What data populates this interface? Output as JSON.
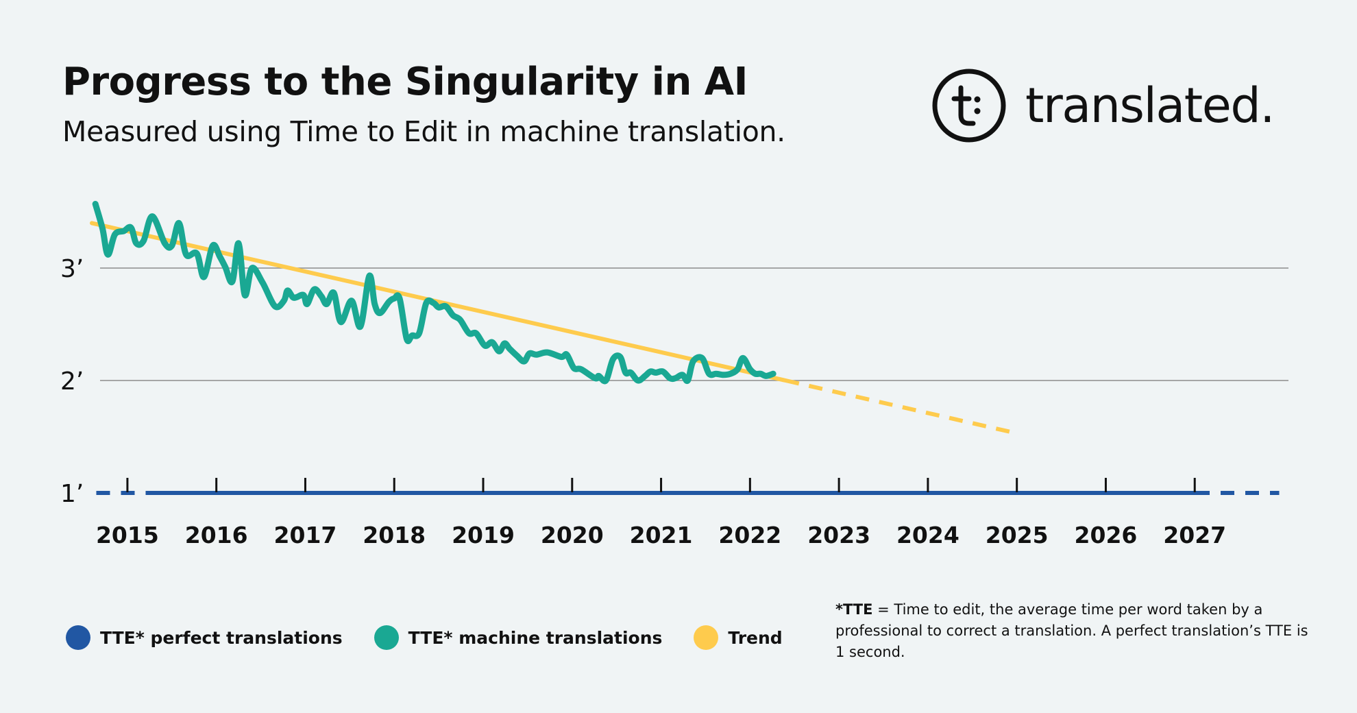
{
  "header": {
    "title": "Progress to the Singularity in AI",
    "subtitle": "Measured using Time to Edit in machine translation."
  },
  "logo": {
    "text": "translated.",
    "icon": "translated-logo-icon"
  },
  "colors": {
    "background": "#f0f4f5",
    "perfect": "#2157a3",
    "machine": "#1aa893",
    "trend": "#fecb4d",
    "gridline": "#8c8c8c",
    "text": "#111111"
  },
  "legend": {
    "perfect_label": "TTE* perfect translations",
    "machine_label": "TTE* machine translations",
    "trend_label": "Trend"
  },
  "footnote": {
    "term": "*TTE",
    "text": " = Time to edit, the average time per word taken by a professional to correct a translation. A perfect translation’s TTE is 1 second."
  },
  "chart_data": {
    "type": "line",
    "title": "Progress to the Singularity in AI",
    "subtitle": "Measured using Time to Edit in machine translation.",
    "xlabel": "",
    "ylabel": "",
    "x_ticks": [
      "2015",
      "2016",
      "2017",
      "2018",
      "2019",
      "2020",
      "2021",
      "2022",
      "2023",
      "2024",
      "2025",
      "2026",
      "2027"
    ],
    "y_ticks": [
      {
        "value": 1,
        "label": "1’"
      },
      {
        "value": 2,
        "label": "2’"
      },
      {
        "value": 3,
        "label": "3’"
      }
    ],
    "xlim": [
      2014.6,
      2028.0
    ],
    "ylim": [
      1,
      3.6
    ],
    "grid": "horizontal",
    "legend_position": "bottom-left",
    "series": [
      {
        "name": "TTE* perfect translations",
        "style": "solid, dashed at both ends",
        "x": [
          2014.65,
          2027.95
        ],
        "y": [
          1.0,
          1.0
        ]
      },
      {
        "name": "TTE* machine translations",
        "style": "solid",
        "x": [
          2014.64,
          2014.72,
          2014.78,
          2014.86,
          2014.96,
          2015.04,
          2015.1,
          2015.18,
          2015.28,
          2015.42,
          2015.5,
          2015.58,
          2015.66,
          2015.78,
          2015.86,
          2015.96,
          2016.04,
          2016.1,
          2016.18,
          2016.25,
          2016.32,
          2016.4,
          2016.52,
          2016.66,
          2016.76,
          2016.8,
          2016.86,
          2016.9,
          2016.98,
          2017.02,
          2017.1,
          2017.18,
          2017.24,
          2017.32,
          2017.4,
          2017.52,
          2017.62,
          2017.72,
          2017.78,
          2017.84,
          2017.94,
          2018.0,
          2018.06,
          2018.14,
          2018.2,
          2018.28,
          2018.36,
          2018.44,
          2018.5,
          2018.58,
          2018.66,
          2018.74,
          2018.84,
          2018.92,
          2019.02,
          2019.1,
          2019.18,
          2019.24,
          2019.3,
          2019.38,
          2019.46,
          2019.52,
          2019.6,
          2019.72,
          2019.88,
          2019.94,
          2020.02,
          2020.1,
          2020.26,
          2020.3,
          2020.38,
          2020.46,
          2020.54,
          2020.6,
          2020.66,
          2020.74,
          2020.82,
          2020.88,
          2020.94,
          2021.02,
          2021.1,
          2021.16,
          2021.24,
          2021.3,
          2021.36,
          2021.46,
          2021.54,
          2021.62,
          2021.7,
          2021.78,
          2021.86,
          2021.92,
          2022.0,
          2022.06,
          2022.12,
          2022.18,
          2022.26
        ],
        "y": [
          3.57,
          3.35,
          3.12,
          3.3,
          3.33,
          3.36,
          3.22,
          3.24,
          3.46,
          3.22,
          3.2,
          3.4,
          3.12,
          3.13,
          2.92,
          3.2,
          3.1,
          3.01,
          2.88,
          3.22,
          2.76,
          3.0,
          2.87,
          2.66,
          2.71,
          2.8,
          2.74,
          2.74,
          2.76,
          2.68,
          2.81,
          2.75,
          2.68,
          2.78,
          2.52,
          2.71,
          2.48,
          2.93,
          2.68,
          2.6,
          2.7,
          2.73,
          2.73,
          2.37,
          2.4,
          2.42,
          2.69,
          2.69,
          2.65,
          2.66,
          2.58,
          2.54,
          2.42,
          2.42,
          2.31,
          2.34,
          2.26,
          2.33,
          2.28,
          2.22,
          2.17,
          2.24,
          2.23,
          2.25,
          2.21,
          2.23,
          2.11,
          2.1,
          2.02,
          2.04,
          2.0,
          2.19,
          2.21,
          2.07,
          2.07,
          2.0,
          2.04,
          2.08,
          2.07,
          2.08,
          2.02,
          2.02,
          2.05,
          2.0,
          2.17,
          2.2,
          2.06,
          2.06,
          2.05,
          2.06,
          2.1,
          2.2,
          2.1,
          2.06,
          2.06,
          2.04,
          2.06
        ],
        "note": "values estimated from gridlines"
      },
      {
        "name": "Trend",
        "style": "solid to 2022.4, dashed to 2025",
        "x": [
          2014.6,
          2022.4,
          2025.0
        ],
        "y": [
          3.4,
          2.0,
          1.53
        ]
      }
    ]
  }
}
